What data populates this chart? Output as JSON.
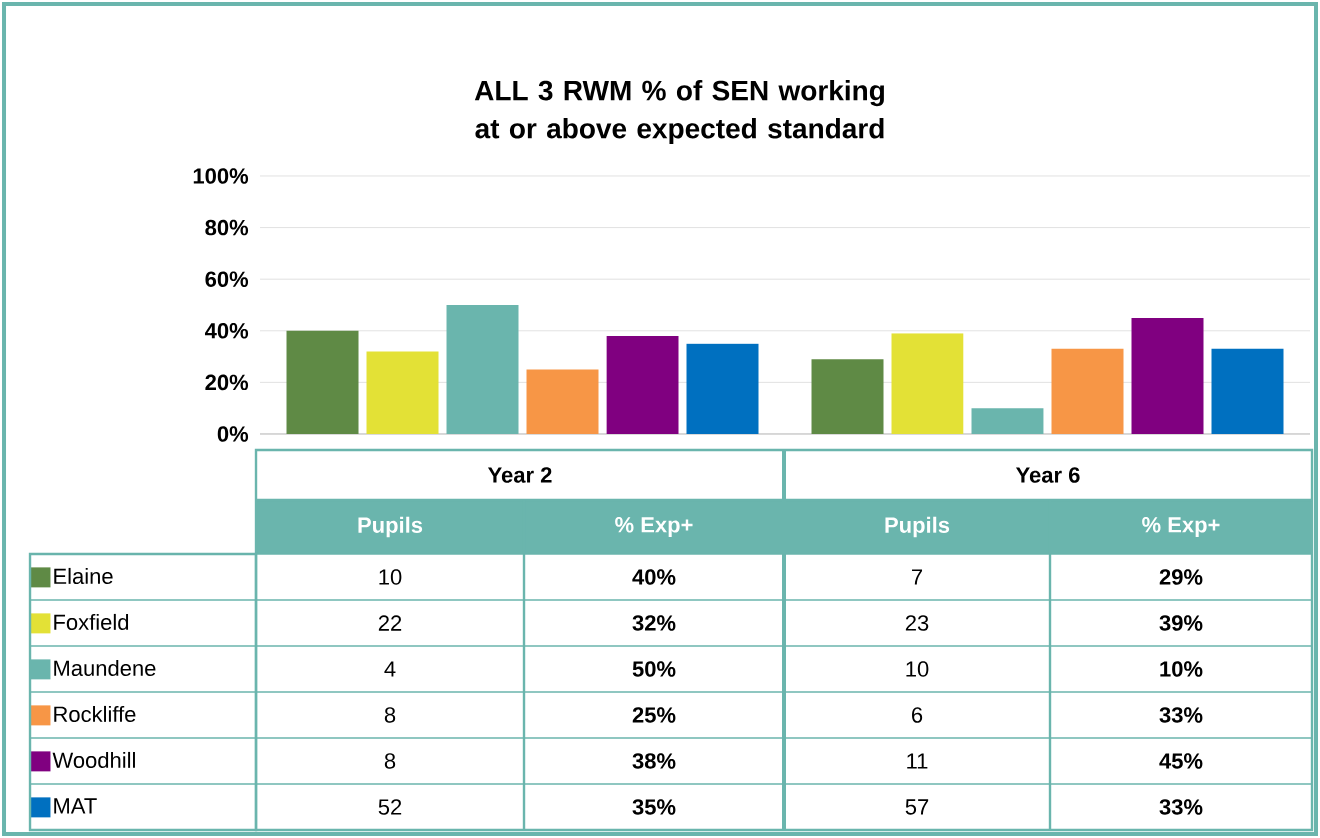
{
  "chart_data": {
    "type": "bar",
    "title": "ALL 3 RWM % of SEN working at or above expected standard",
    "categories": [
      "Year 2",
      "Year 6"
    ],
    "series": [
      {
        "name": "Elaine",
        "color": "#5f8a45",
        "values": [
          40,
          29
        ],
        "value_labels": [
          "40%",
          "29%"
        ]
      },
      {
        "name": "Foxfield",
        "color": "#e3e136",
        "values": [
          32,
          39
        ],
        "value_labels": [
          "32%",
          "39%"
        ]
      },
      {
        "name": "Maundene",
        "color": "#6ab5ad",
        "values": [
          50,
          10
        ],
        "value_labels": [
          "50%",
          "10%"
        ]
      },
      {
        "name": "Rockliffe",
        "color": "#f79646",
        "values": [
          25,
          33
        ],
        "value_labels": [
          "25%",
          "33%"
        ]
      },
      {
        "name": "Woodhill",
        "color": "#800080",
        "values": [
          38,
          45
        ],
        "value_labels": [
          "38%",
          "45%"
        ]
      },
      {
        "name": "MAT",
        "color": "#0070c0",
        "values": [
          35,
          33
        ],
        "value_labels": [
          "35%",
          "33%"
        ]
      }
    ],
    "ylim": [
      0,
      100
    ],
    "yticks": [
      {
        "value": 0,
        "label": "0%"
      },
      {
        "value": 20,
        "label": "20%"
      },
      {
        "value": 40,
        "label": "40%"
      },
      {
        "value": 60,
        "label": "60%"
      },
      {
        "value": 80,
        "label": "80%"
      },
      {
        "value": 100,
        "label": "100%"
      }
    ],
    "grid": "y",
    "legend": "bottom left",
    "annotations": [
      "Pupils",
      "% Exp+",
      "10",
      "7",
      "22",
      "23",
      "4",
      "10",
      "8",
      "6",
      "8",
      "11",
      "52",
      "57"
    ]
  }
}
